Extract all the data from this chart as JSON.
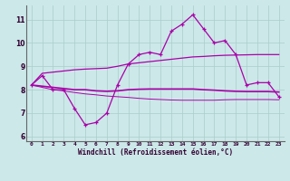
{
  "xlabel": "Windchill (Refroidissement éolien,°C)",
  "x_ticks": [
    0,
    1,
    2,
    3,
    4,
    5,
    6,
    7,
    8,
    9,
    10,
    11,
    12,
    13,
    14,
    15,
    16,
    17,
    18,
    19,
    20,
    21,
    22,
    23
  ],
  "ylim": [
    5.8,
    11.6
  ],
  "yticks": [
    6,
    7,
    8,
    9,
    10,
    11
  ],
  "bg_color": "#cce8e8",
  "grid_color": "#aacccc",
  "line_color": "#aa00aa",
  "line1_x": [
    0,
    1,
    2,
    3,
    4,
    5,
    6,
    7,
    8,
    9,
    10,
    11,
    12,
    13,
    14,
    15,
    16,
    17,
    18,
    19,
    20,
    21,
    22,
    23
  ],
  "line1_y": [
    8.2,
    8.6,
    8.0,
    8.0,
    7.2,
    6.5,
    6.6,
    7.0,
    8.2,
    9.1,
    9.5,
    9.6,
    9.5,
    10.5,
    10.8,
    11.2,
    10.6,
    10.0,
    10.1,
    9.5,
    8.2,
    8.3,
    8.3,
    7.7
  ],
  "line2_x": [
    0,
    1,
    2,
    3,
    4,
    5,
    6,
    7,
    8,
    9,
    10,
    11,
    12,
    13,
    14,
    15,
    16,
    17,
    18,
    19,
    20,
    21,
    22,
    23
  ],
  "line2_y": [
    8.2,
    8.7,
    8.75,
    8.8,
    8.85,
    8.88,
    8.9,
    8.92,
    9.0,
    9.1,
    9.15,
    9.2,
    9.25,
    9.3,
    9.35,
    9.4,
    9.42,
    9.45,
    9.47,
    9.48,
    9.49,
    9.5,
    9.5,
    9.5
  ],
  "line3_x": [
    0,
    1,
    2,
    3,
    4,
    5,
    6,
    7,
    8,
    9,
    10,
    11,
    12,
    13,
    14,
    15,
    16,
    17,
    18,
    19,
    20,
    21,
    22,
    23
  ],
  "line3_y": [
    8.2,
    8.15,
    8.1,
    8.05,
    8.0,
    8.0,
    7.95,
    7.93,
    7.95,
    8.0,
    8.02,
    8.03,
    8.03,
    8.03,
    8.03,
    8.03,
    8.0,
    7.98,
    7.95,
    7.93,
    7.92,
    7.92,
    7.92,
    7.9
  ],
  "line4_x": [
    0,
    1,
    2,
    3,
    4,
    5,
    6,
    7,
    8,
    9,
    10,
    11,
    12,
    13,
    14,
    15,
    16,
    17,
    18,
    19,
    20,
    21,
    22,
    23
  ],
  "line4_y": [
    8.2,
    8.1,
    8.0,
    7.95,
    7.88,
    7.82,
    7.78,
    7.73,
    7.7,
    7.67,
    7.63,
    7.6,
    7.58,
    7.56,
    7.55,
    7.55,
    7.55,
    7.55,
    7.57,
    7.58,
    7.58,
    7.58,
    7.58,
    7.57
  ]
}
